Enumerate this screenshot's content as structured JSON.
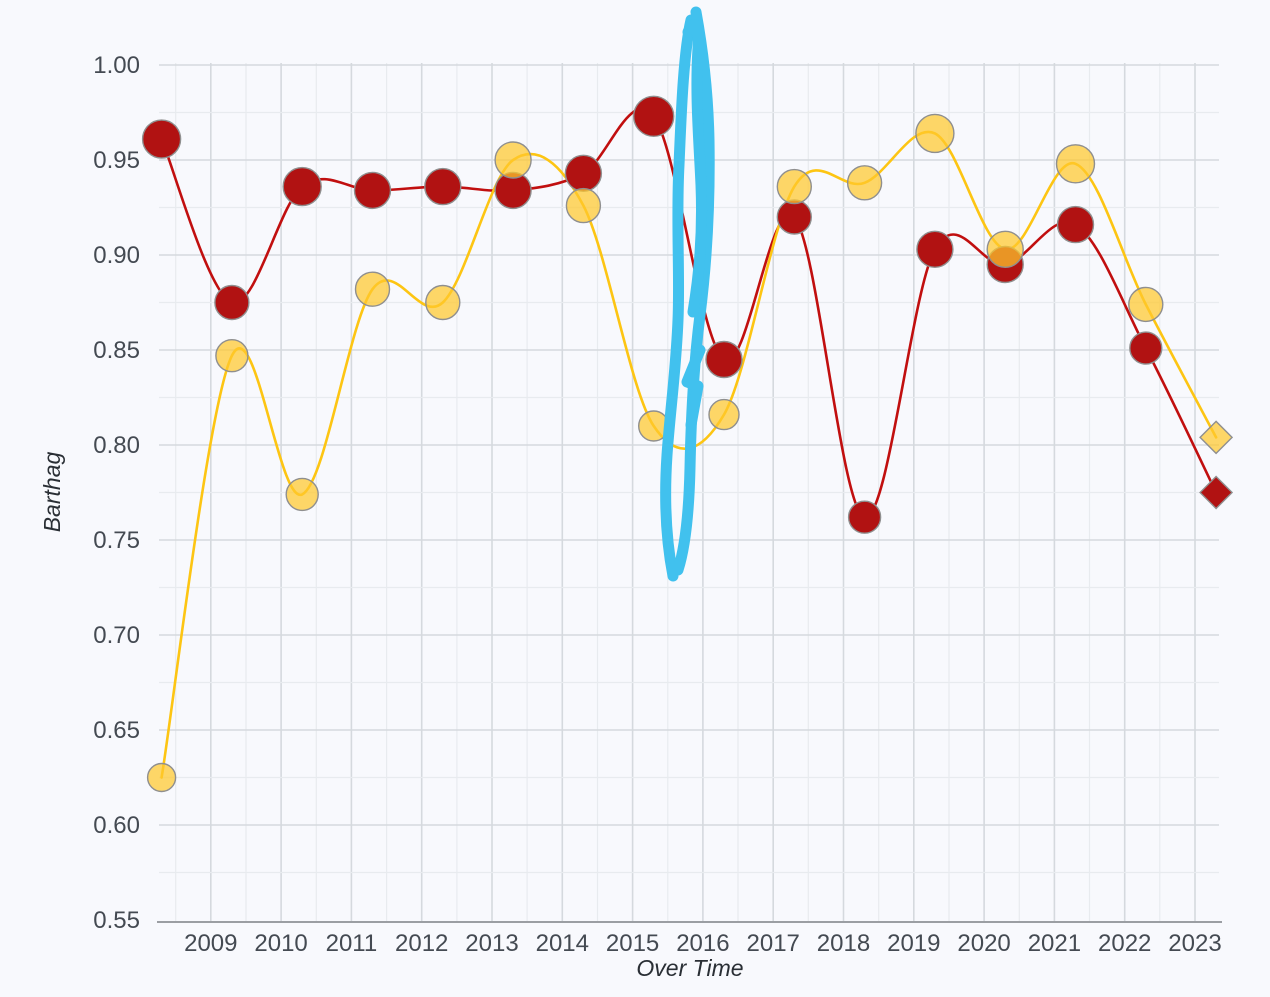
{
  "chart_data": {
    "type": "line",
    "title": "",
    "xlabel": "Over Time",
    "ylabel": "Barthag",
    "x_tick_labels": [
      "2009",
      "2010",
      "2011",
      "2012",
      "2013",
      "2014",
      "2015",
      "2016",
      "2017",
      "2018",
      "2019",
      "2020",
      "2021",
      "2022",
      "2023"
    ],
    "y_tick_labels": [
      "0.55",
      "0.60",
      "0.65",
      "0.70",
      "0.75",
      "0.80",
      "0.85",
      "0.90",
      "0.95",
      "1.00"
    ],
    "xlim": [
      2008.27,
      2023.35
    ],
    "ylim": [
      0.548,
      1.001
    ],
    "grid": "minor-and-major, light gray, no legend, no title",
    "x": [
      2008,
      2009,
      2010,
      2011,
      2012,
      2013,
      2014,
      2015,
      2016,
      2017,
      2018,
      2019,
      2020,
      2021,
      2022,
      2023
    ],
    "x_season_offset": 0.3,
    "series": [
      {
        "name": "dark-red-team",
        "values": [
          0.961,
          0.875,
          0.936,
          0.934,
          0.936,
          0.934,
          0.943,
          0.973,
          0.845,
          0.92,
          0.762,
          0.903,
          0.895,
          0.916,
          0.851,
          0.775
        ],
        "marker_radii": [
          19,
          17,
          19,
          18,
          18,
          18,
          18,
          20,
          18,
          17,
          16,
          18,
          18,
          18,
          16,
          16
        ],
        "marker_shape": "circle",
        "last_marker_shape": "diamond"
      },
      {
        "name": "gold-team",
        "values": [
          0.625,
          0.847,
          0.774,
          0.882,
          0.875,
          0.95,
          0.926,
          0.81,
          0.816,
          0.936,
          0.938,
          0.964,
          0.903,
          0.948,
          0.874,
          0.804
        ],
        "marker_radii": [
          14,
          16,
          16,
          17,
          17,
          18,
          17,
          15,
          15,
          17,
          17,
          19,
          18,
          19,
          17,
          16
        ],
        "marker_shape": "circle",
        "last_marker_shape": "diamond"
      }
    ],
    "annotation": {
      "type": "hand-drawn-scribble",
      "description": "thick light-blue vertical marker scribble near x=2015.9 spanning y 0.73 to above 1.02",
      "paths": [
        "M 673 576 C 666 540 664 500 667 455 C 670 412 676 370 678 320 C 680 275 676 220 679 165 C 681 120 683 55 691 20",
        "M 696 12 C 702 45 708 90 709 140 C 710 200 707 260 700 315 C 694 362 691 420 690 468 C 689 512 685 548 678 570",
        "M 688 32 C 694 20 700 22 698 48 C 695 95 699 140 701 185 C 703 235 699 275 693 312",
        "M 700 350 L 687 382 L 698 386 L 691 425"
      ]
    },
    "colors": {
      "background": "#f8f9fd",
      "red_line": "#c10f0f",
      "red_marker_fill": "#b11212",
      "gold_line": "#fdc513",
      "gold_marker_fill": "rgba(255,199,44,0.72)",
      "marker_stroke": "#8f8f8f",
      "annotation_blue": "#41c1ee",
      "grid_minor": "#e8ebef",
      "grid_major": "#d5d9de",
      "axis_line": "#9b9ea3",
      "tick_text": "#444a52",
      "title_text": "#2a2f35"
    }
  }
}
